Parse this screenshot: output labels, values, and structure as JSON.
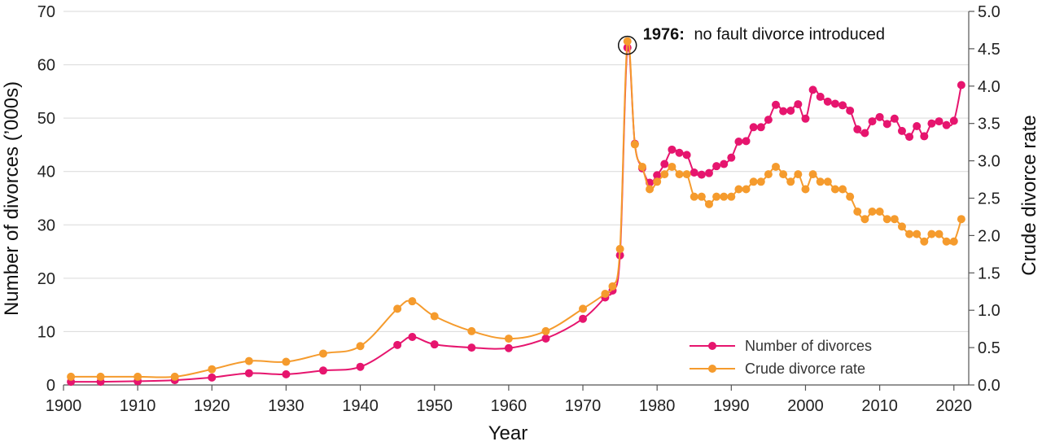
{
  "chart_data": {
    "type": "line",
    "xlabel": "Year",
    "ylabel": "Number of divorces (’000s)",
    "y2label": "Crude divorce rate",
    "xlim": [
      1900,
      2022
    ],
    "ylim": [
      0,
      70
    ],
    "y2lim": [
      0,
      5
    ],
    "x_ticks": [
      "1900",
      "1910",
      "1920",
      "1930",
      "1940",
      "1950",
      "1960",
      "1970",
      "1980",
      "1990",
      "2000",
      "2010",
      "2020"
    ],
    "y_ticks": [
      "0",
      "10",
      "20",
      "30",
      "40",
      "50",
      "60",
      "70"
    ],
    "y2_ticks": [
      "0.0",
      "0.5",
      "1.0",
      "1.5",
      "2.0",
      "2.5",
      "3.0",
      "3.5",
      "4.0",
      "4.5",
      "5.0"
    ],
    "grid": true,
    "legend_position": "bottom-right",
    "annotation": {
      "year_bold": "1976:",
      "text": "no fault divorce introduced",
      "x": 1976,
      "y": 63.5
    },
    "series": [
      {
        "name": "Number of divorces",
        "color": "#e6156e",
        "axis": "left",
        "points": [
          [
            1901,
            0.6
          ],
          [
            1905,
            0.6
          ],
          [
            1910,
            0.7
          ],
          [
            1915,
            0.9
          ],
          [
            1920,
            1.4
          ],
          [
            1925,
            2.2
          ],
          [
            1930,
            2.0
          ],
          [
            1935,
            2.7
          ],
          [
            1940,
            3.4
          ],
          [
            1945,
            7.5
          ],
          [
            1947,
            9.0
          ],
          [
            1950,
            7.6
          ],
          [
            1955,
            7.0
          ],
          [
            1960,
            6.9
          ],
          [
            1965,
            8.7
          ],
          [
            1970,
            12.4
          ],
          [
            1973,
            16.4
          ],
          [
            1974,
            17.7
          ],
          [
            1975,
            24.3
          ],
          [
            1976,
            63.2
          ],
          [
            1977,
            45.2
          ],
          [
            1978,
            40.6
          ],
          [
            1979,
            37.9
          ],
          [
            1980,
            39.3
          ],
          [
            1981,
            41.4
          ],
          [
            1982,
            44.1
          ],
          [
            1983,
            43.5
          ],
          [
            1984,
            43.1
          ],
          [
            1985,
            39.8
          ],
          [
            1986,
            39.4
          ],
          [
            1987,
            39.7
          ],
          [
            1988,
            41.0
          ],
          [
            1989,
            41.4
          ],
          [
            1990,
            42.6
          ],
          [
            1991,
            45.6
          ],
          [
            1992,
            45.7
          ],
          [
            1993,
            48.3
          ],
          [
            1994,
            48.3
          ],
          [
            1995,
            49.7
          ],
          [
            1996,
            52.5
          ],
          [
            1997,
            51.3
          ],
          [
            1998,
            51.4
          ],
          [
            1999,
            52.6
          ],
          [
            2000,
            49.9
          ],
          [
            2001,
            55.3
          ],
          [
            2002,
            54.0
          ],
          [
            2003,
            53.1
          ],
          [
            2004,
            52.7
          ],
          [
            2005,
            52.4
          ],
          [
            2006,
            51.4
          ],
          [
            2007,
            47.9
          ],
          [
            2008,
            47.2
          ],
          [
            2009,
            49.4
          ],
          [
            2010,
            50.2
          ],
          [
            2011,
            48.9
          ],
          [
            2012,
            49.9
          ],
          [
            2013,
            47.6
          ],
          [
            2014,
            46.5
          ],
          [
            2015,
            48.5
          ],
          [
            2016,
            46.6
          ],
          [
            2017,
            49.0
          ],
          [
            2018,
            49.4
          ],
          [
            2019,
            48.7
          ],
          [
            2020,
            49.5
          ],
          [
            2021,
            56.2
          ]
        ]
      },
      {
        "name": "Crude divorce rate",
        "color": "#f59b2d",
        "axis": "right",
        "points": [
          [
            1901,
            0.11
          ],
          [
            1905,
            0.11
          ],
          [
            1910,
            0.11
          ],
          [
            1915,
            0.11
          ],
          [
            1920,
            0.21
          ],
          [
            1925,
            0.32
          ],
          [
            1930,
            0.31
          ],
          [
            1935,
            0.42
          ],
          [
            1940,
            0.52
          ],
          [
            1945,
            1.02
          ],
          [
            1947,
            1.12
          ],
          [
            1950,
            0.92
          ],
          [
            1955,
            0.72
          ],
          [
            1960,
            0.62
          ],
          [
            1965,
            0.72
          ],
          [
            1970,
            1.02
          ],
          [
            1973,
            1.22
          ],
          [
            1974,
            1.32
          ],
          [
            1975,
            1.82
          ],
          [
            1976,
            4.6
          ],
          [
            1977,
            3.22
          ],
          [
            1978,
            2.92
          ],
          [
            1979,
            2.62
          ],
          [
            1980,
            2.72
          ],
          [
            1981,
            2.82
          ],
          [
            1982,
            2.92
          ],
          [
            1983,
            2.82
          ],
          [
            1984,
            2.82
          ],
          [
            1985,
            2.52
          ],
          [
            1986,
            2.52
          ],
          [
            1987,
            2.42
          ],
          [
            1988,
            2.52
          ],
          [
            1989,
            2.52
          ],
          [
            1990,
            2.52
          ],
          [
            1991,
            2.62
          ],
          [
            1992,
            2.62
          ],
          [
            1993,
            2.72
          ],
          [
            1994,
            2.72
          ],
          [
            1995,
            2.82
          ],
          [
            1996,
            2.92
          ],
          [
            1997,
            2.82
          ],
          [
            1998,
            2.72
          ],
          [
            1999,
            2.82
          ],
          [
            2000,
            2.62
          ],
          [
            2001,
            2.82
          ],
          [
            2002,
            2.72
          ],
          [
            2003,
            2.72
          ],
          [
            2004,
            2.62
          ],
          [
            2005,
            2.62
          ],
          [
            2006,
            2.52
          ],
          [
            2007,
            2.32
          ],
          [
            2008,
            2.22
          ],
          [
            2009,
            2.32
          ],
          [
            2010,
            2.32
          ],
          [
            2011,
            2.22
          ],
          [
            2012,
            2.22
          ],
          [
            2013,
            2.12
          ],
          [
            2014,
            2.02
          ],
          [
            2015,
            2.02
          ],
          [
            2016,
            1.92
          ],
          [
            2017,
            2.02
          ],
          [
            2018,
            2.02
          ],
          [
            2019,
            1.92
          ],
          [
            2020,
            1.92
          ],
          [
            2021,
            2.22
          ]
        ]
      }
    ]
  }
}
